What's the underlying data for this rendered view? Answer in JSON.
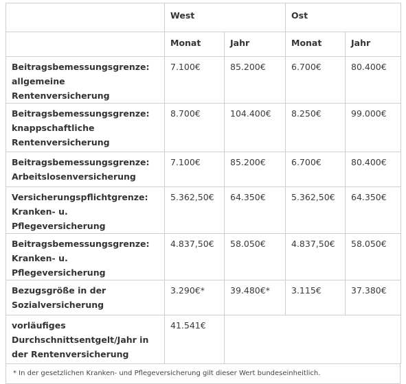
{
  "header": {
    "region_west": "West",
    "region_east": "Ost",
    "month_label": "Monat",
    "year_label": "Jahr"
  },
  "rows": [
    {
      "label": "Beitragsbemessungsgrenze: allgemeine Rentenversicherung",
      "west_month": "7.100€",
      "west_year": "85.200€",
      "east_month": "6.700€",
      "east_year": "80.400€"
    },
    {
      "label": "Beitragsbemessungsgrenze: knappschaftliche Rentenversicherung",
      "west_month": "8.700€",
      "west_year": "104.400€",
      "east_month": "8.250€",
      "east_year": "99.000€"
    },
    {
      "label": "Beitragsbemessungsgrenze: Arbeitslosenversicherung",
      "west_month": "7.100€",
      "west_year": "85.200€",
      "east_month": "6.700€",
      "east_year": "80.400€"
    },
    {
      "label": "Versicherungspflichtgrenze: Kranken- u. Pflegeversicherung",
      "west_month": "5.362,50€",
      "west_year": "64.350€",
      "east_month": "5.362,50€",
      "east_year": "64.350€"
    },
    {
      "label": "Beitragsbemessungsgrenze: Kranken- u. Pflegeversicherung",
      "west_month": "4.837,50€",
      "west_year": "58.050€",
      "east_month": "4.837,50€",
      "east_year": "58.050€"
    },
    {
      "label": "Bezugsgröße in der Sozialversicherung",
      "west_month": "3.290€*",
      "west_year": "39.480€*",
      "east_month": "3.115€",
      "east_year": "37.380€"
    }
  ],
  "last_row": {
    "label": "vorläufiges Durchschnittsentgelt/Jahr in der Rentenversicherung",
    "value": "41.541€"
  },
  "footnote": "* In der gesetzlichen Kranken- und Pflegeversicherung gilt dieser Wert bundeseinheitlich."
}
